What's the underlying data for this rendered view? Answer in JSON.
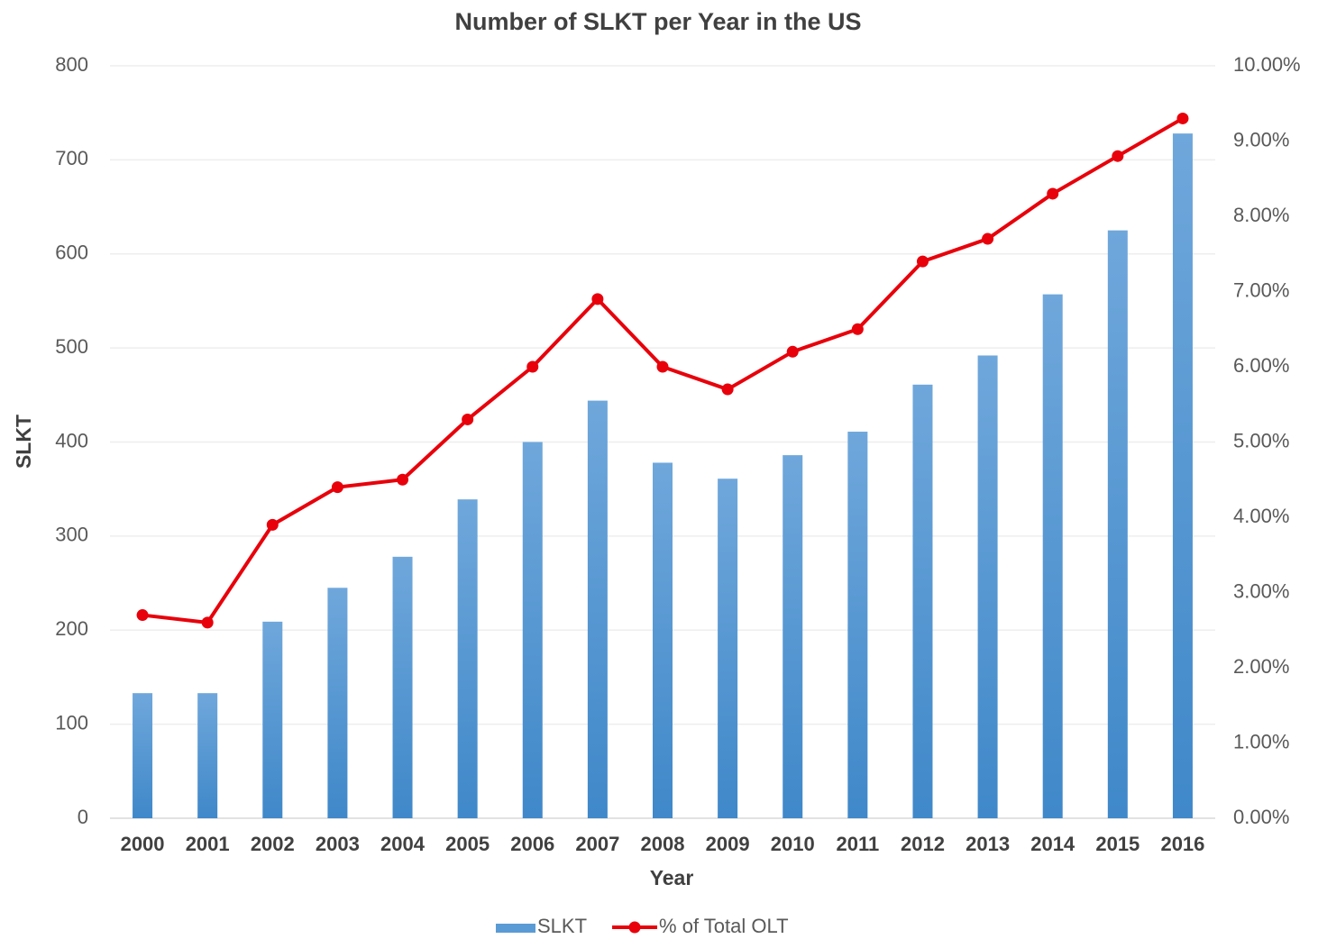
{
  "chart_data": {
    "type": "bar",
    "title": "Number of SLKT per Year in the US",
    "x_label": "Year",
    "y_label": "SLKT",
    "categories": [
      "2000",
      "2001",
      "2002",
      "2003",
      "2004",
      "2005",
      "2006",
      "2007",
      "2008",
      "2009",
      "2010",
      "2011",
      "2012",
      "2013",
      "2014",
      "2015",
      "2016"
    ],
    "series": [
      {
        "name": "SLKT",
        "type": "bar",
        "color": "#5b9bd5",
        "values": [
          133,
          133,
          209,
          245,
          278,
          339,
          400,
          444,
          378,
          361,
          386,
          411,
          461,
          492,
          557,
          625,
          728
        ]
      },
      {
        "name": "% of Total OLT",
        "type": "line",
        "axis": "y2",
        "color": "#e8000b",
        "values": [
          2.7,
          2.6,
          3.9,
          4.4,
          4.5,
          5.3,
          6.0,
          6.9,
          6.0,
          5.7,
          6.2,
          6.5,
          7.4,
          7.7,
          8.3,
          8.8,
          9.3
        ]
      }
    ],
    "ylim": [
      0,
      800
    ],
    "yticks": [
      0,
      100,
      200,
      300,
      400,
      500,
      600,
      700,
      800
    ],
    "y2lim": [
      0,
      10
    ],
    "y2ticks": [
      {
        "value": 0,
        "label": "0.00%"
      },
      {
        "value": 1,
        "label": "1.00%"
      },
      {
        "value": 2,
        "label": "2.00%"
      },
      {
        "value": 3,
        "label": "3.00%"
      },
      {
        "value": 4,
        "label": "4.00%"
      },
      {
        "value": 5,
        "label": "5.00%"
      },
      {
        "value": 6,
        "label": "6.00%"
      },
      {
        "value": 7,
        "label": "7.00%"
      },
      {
        "value": 8,
        "label": "8.00%"
      },
      {
        "value": 9,
        "label": "9.00%"
      },
      {
        "value": 10,
        "label": "10.00%"
      }
    ],
    "grid": true,
    "legend": "bottom"
  }
}
